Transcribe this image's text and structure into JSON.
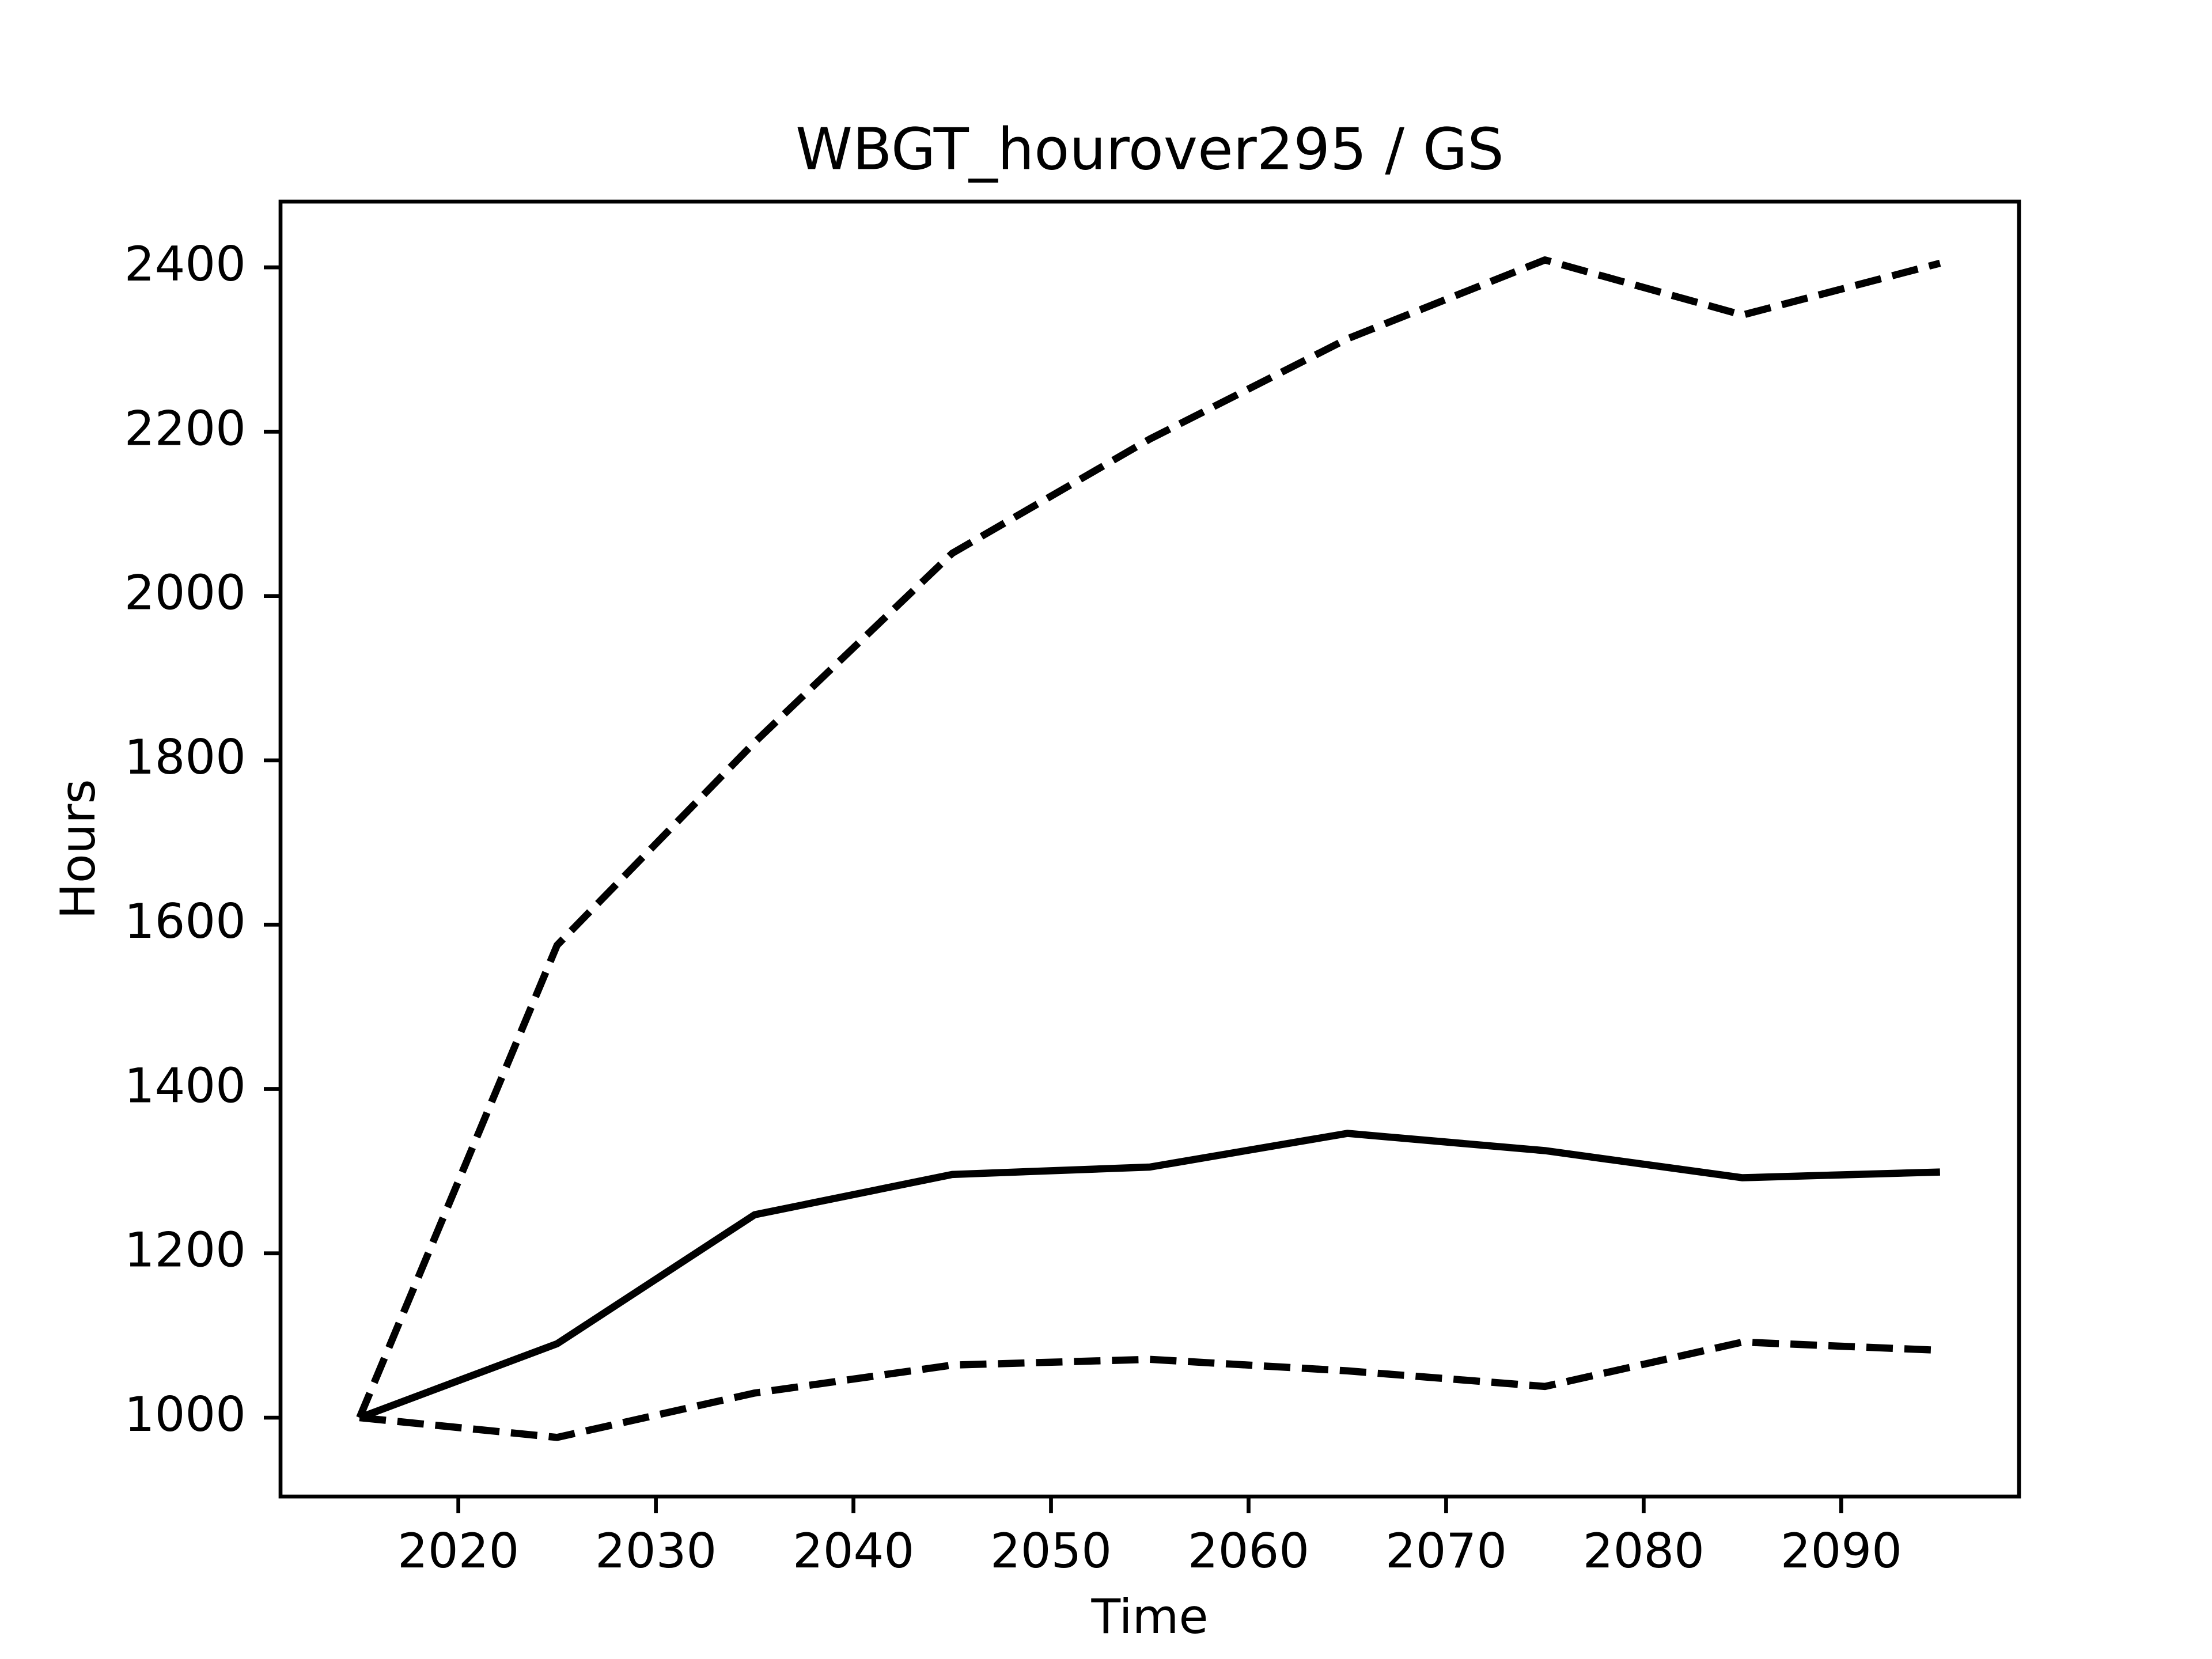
{
  "chart_data": {
    "type": "line",
    "title": "WBGT_hourover295 / GS",
    "x_label": "Time",
    "y_label": "Hours",
    "x": [
      2015,
      2025,
      2035,
      2045,
      2055,
      2065,
      2075,
      2085,
      2095
    ],
    "series": [
      {
        "color": "#000000",
        "linestyle": "solid",
        "values": [
          1000,
          1090,
          1247,
          1296,
          1305,
          1346,
          1325,
          1292,
          1299
        ]
      },
      {
        "color": "#000000",
        "linestyle": "dashed",
        "values": [
          1000,
          1575,
          1822,
          2052,
          2191,
          2313,
          2409,
          2342,
          2405
        ]
      },
      {
        "color": "#000000",
        "linestyle": "dashed",
        "values": [
          1000,
          976,
          1030,
          1064,
          1071,
          1057,
          1038,
          1092,
          1082
        ]
      }
    ],
    "xlim": [
      2011,
      2099
    ],
    "xticks": [
      2020,
      2030,
      2040,
      2050,
      2060,
      2070,
      2080,
      2090
    ],
    "ylim": [
      904,
      2480
    ],
    "yticks": [
      1000,
      1200,
      1400,
      1600,
      1800,
      2000,
      2200,
      2400
    ]
  }
}
